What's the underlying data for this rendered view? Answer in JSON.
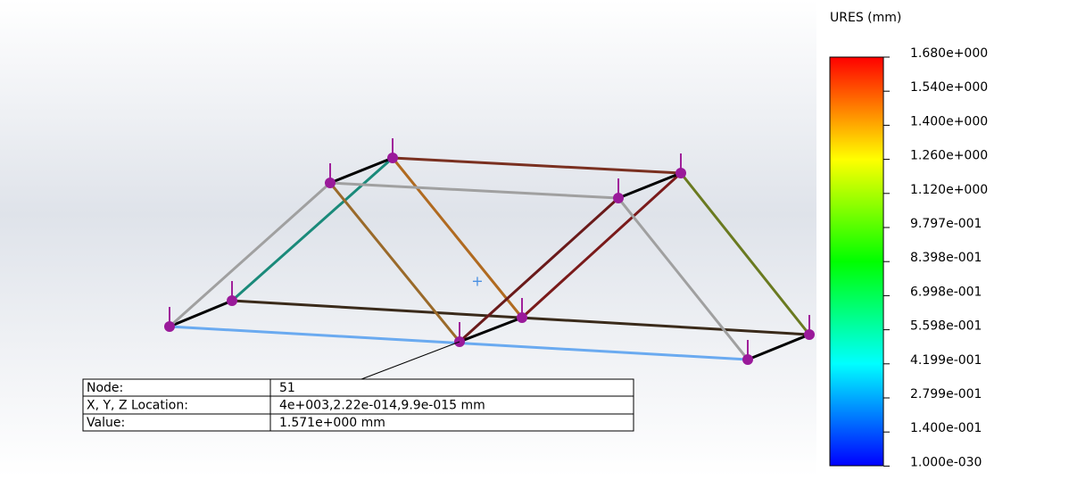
{
  "legend": {
    "title": "URES (mm)",
    "labels": [
      "1.680e+000",
      "1.540e+000",
      "1.400e+000",
      "1.260e+000",
      "1.120e+000",
      "9.797e-001",
      "8.398e-001",
      "6.998e-001",
      "5.598e-001",
      "4.199e-001",
      "2.799e-001",
      "1.400e-001",
      "1.000e-030"
    ]
  },
  "probe": {
    "rows": [
      [
        "Node:",
        "51"
      ],
      [
        "X, Y, Z Location:",
        "4e+003,2.22e-014,9.9e-015 mm"
      ],
      [
        "Value:",
        "1.571e+000 mm"
      ]
    ]
  }
}
